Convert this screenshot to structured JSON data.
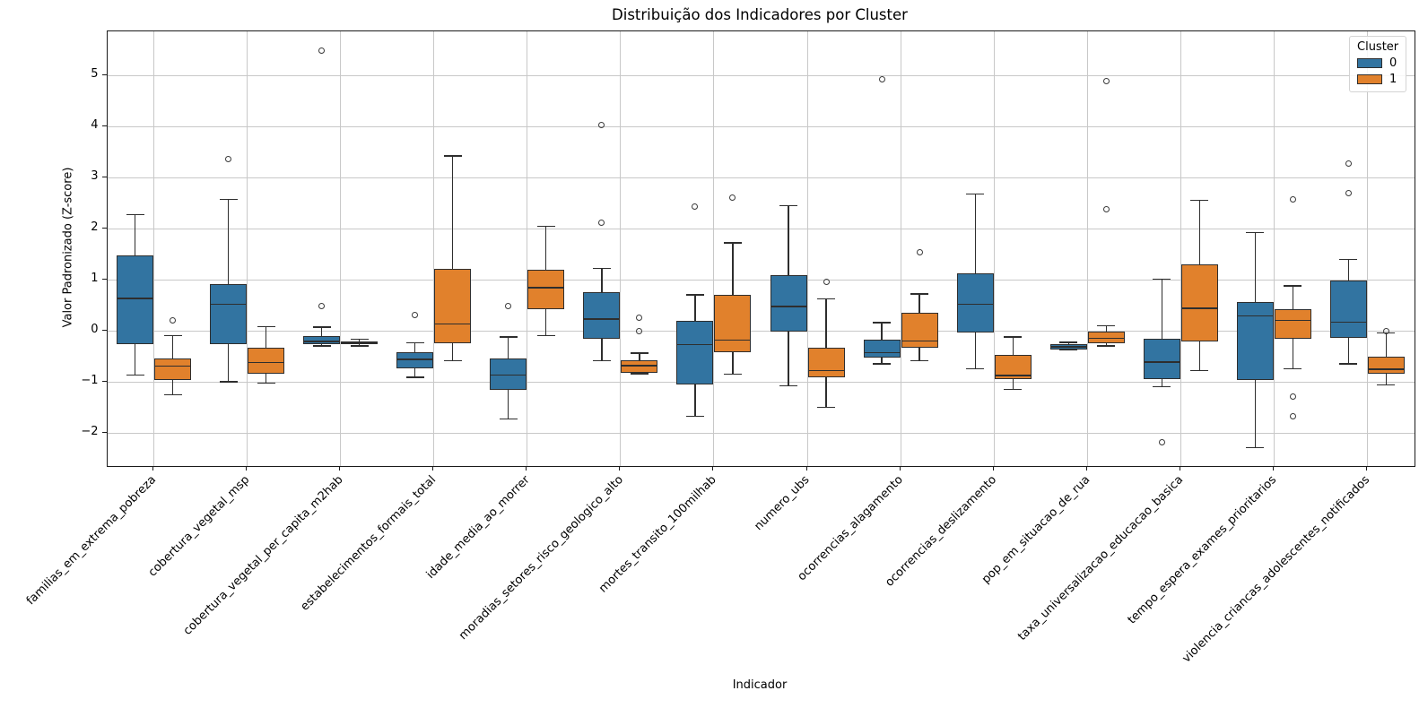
{
  "chart_data": {
    "type": "grouped_boxplot",
    "title": "Distribuição dos Indicadores por Cluster",
    "xlabel": "Indicador",
    "ylabel": "Valor Padronizado (Z-score)",
    "grid": true,
    "grid_color": "#c8c8c8",
    "line_color": "#2e2e2e",
    "ylim": [
      -2.64,
      5.87
    ],
    "y_ticks": {
      "values": [
        5,
        4,
        3,
        2,
        1,
        0,
        -1,
        -2
      ],
      "labels": [
        "5",
        "4",
        "3",
        "2",
        "1",
        "0",
        "−1",
        "−2"
      ]
    },
    "legend": {
      "title": "Cluster",
      "position": "upper right"
    },
    "categories": [
      "familias_em_extrema_pobreza",
      "cobertura_vegetal_msp",
      "cobertura_vegetal_per_capita_m2hab",
      "estabelecimentos_formais_total",
      "idade_media_ao_morrer",
      "moradias_setores_risco_geologico_alto",
      "mortes_transito_100milhab",
      "numero_ubs",
      "ocorrencias_alagamento",
      "ocorrencias_deslizamento",
      "pop_em_situacao_de_rua",
      "taxa_universalizacao_educacao_basica",
      "tempo_espera_exames_prioritarios",
      "violencia_criancas_adolescentes_notificados"
    ],
    "series": [
      {
        "name": "0",
        "color": "#3274a1",
        "boxes": [
          {
            "whislo": -0.87,
            "q1": -0.26,
            "med": 0.63,
            "q3": 1.47,
            "whishi": 2.27,
            "outliers": []
          },
          {
            "whislo": -1.0,
            "q1": -0.26,
            "med": 0.52,
            "q3": 0.92,
            "whishi": 2.57,
            "outliers": [
              3.36
            ]
          },
          {
            "whislo": -0.3,
            "q1": -0.27,
            "med": -0.21,
            "q3": -0.11,
            "whishi": 0.07,
            "outliers": [
              5.49,
              0.49
            ]
          },
          {
            "whislo": -0.91,
            "q1": -0.74,
            "med": -0.56,
            "q3": -0.42,
            "whishi": -0.24,
            "outliers": [
              0.3
            ]
          },
          {
            "whislo": -1.73,
            "q1": -1.16,
            "med": -0.87,
            "q3": -0.55,
            "whishi": -0.12,
            "outliers": [
              0.49
            ]
          },
          {
            "whislo": -0.59,
            "q1": -0.15,
            "med": 0.23,
            "q3": 0.75,
            "whishi": 1.22,
            "outliers": [
              4.03,
              2.11
            ]
          },
          {
            "whislo": -1.67,
            "q1": -1.06,
            "med": -0.27,
            "q3": 0.19,
            "whishi": 0.7,
            "outliers": [
              2.43
            ]
          },
          {
            "whislo": -1.08,
            "q1": -0.01,
            "med": 0.47,
            "q3": 1.09,
            "whishi": 2.45,
            "outliers": []
          },
          {
            "whislo": -0.65,
            "q1": -0.53,
            "med": -0.43,
            "q3": -0.18,
            "whishi": 0.16,
            "outliers": [
              4.92
            ]
          },
          {
            "whislo": -0.74,
            "q1": -0.04,
            "med": 0.52,
            "q3": 1.13,
            "whishi": 2.68,
            "outliers": []
          },
          {
            "whislo": -0.38,
            "q1": -0.36,
            "med": -0.31,
            "q3": -0.26,
            "whishi": -0.23,
            "outliers": []
          },
          {
            "whislo": -1.1,
            "q1": -0.94,
            "med": -0.61,
            "q3": -0.15,
            "whishi": 1.01,
            "outliers": [
              -2.19
            ]
          },
          {
            "whislo": -2.29,
            "q1": -0.96,
            "med": 0.29,
            "q3": 0.57,
            "whishi": 1.92,
            "outliers": []
          },
          {
            "whislo": -0.65,
            "q1": -0.14,
            "med": 0.17,
            "q3": 0.99,
            "whishi": 1.4,
            "outliers": [
              3.28,
              2.7
            ]
          }
        ]
      },
      {
        "name": "1",
        "color": "#e1812c",
        "boxes": [
          {
            "whislo": -1.25,
            "q1": -0.96,
            "med": -0.69,
            "q3": -0.55,
            "whishi": -0.09,
            "outliers": [
              0.2
            ]
          },
          {
            "whislo": -1.03,
            "q1": -0.85,
            "med": -0.62,
            "q3": -0.33,
            "whishi": 0.08,
            "outliers": []
          },
          {
            "whislo": -0.3,
            "q1": -0.27,
            "med": -0.24,
            "q3": -0.21,
            "whishi": -0.16,
            "outliers": []
          },
          {
            "whislo": -0.59,
            "q1": -0.24,
            "med": 0.13,
            "q3": 1.22,
            "whishi": 3.42,
            "outliers": []
          },
          {
            "whislo": -0.09,
            "q1": 0.42,
            "med": 0.84,
            "q3": 1.2,
            "whishi": 2.04,
            "outliers": []
          },
          {
            "whislo": -0.84,
            "q1": -0.82,
            "med": -0.68,
            "q3": -0.58,
            "whishi": -0.44,
            "outliers": [
              0.26,
              -0.01
            ]
          },
          {
            "whislo": -0.85,
            "q1": -0.42,
            "med": -0.18,
            "q3": 0.71,
            "whishi": 1.72,
            "outliers": [
              2.61
            ]
          },
          {
            "whislo": -1.5,
            "q1": -0.91,
            "med": -0.78,
            "q3": -0.33,
            "whishi": 0.62,
            "outliers": [
              0.96
            ]
          },
          {
            "whislo": -0.59,
            "q1": -0.33,
            "med": -0.2,
            "q3": 0.36,
            "whishi": 0.72,
            "outliers": [
              1.53
            ]
          },
          {
            "whislo": -1.15,
            "q1": -0.94,
            "med": -0.88,
            "q3": -0.47,
            "whishi": -0.12,
            "outliers": []
          },
          {
            "whislo": -0.3,
            "q1": -0.24,
            "med": -0.15,
            "q3": -0.01,
            "whishi": 0.1,
            "outliers": [
              4.88,
              2.38
            ]
          },
          {
            "whislo": -0.78,
            "q1": -0.21,
            "med": 0.44,
            "q3": 1.3,
            "whishi": 2.55,
            "outliers": []
          },
          {
            "whislo": -0.75,
            "q1": -0.15,
            "med": 0.2,
            "q3": 0.43,
            "whishi": 0.88,
            "outliers": [
              2.58,
              -1.29,
              -1.67
            ]
          },
          {
            "whislo": -1.06,
            "q1": -0.84,
            "med": -0.75,
            "q3": -0.51,
            "whishi": -0.04,
            "outliers": [
              -0.01
            ]
          }
        ]
      }
    ]
  }
}
